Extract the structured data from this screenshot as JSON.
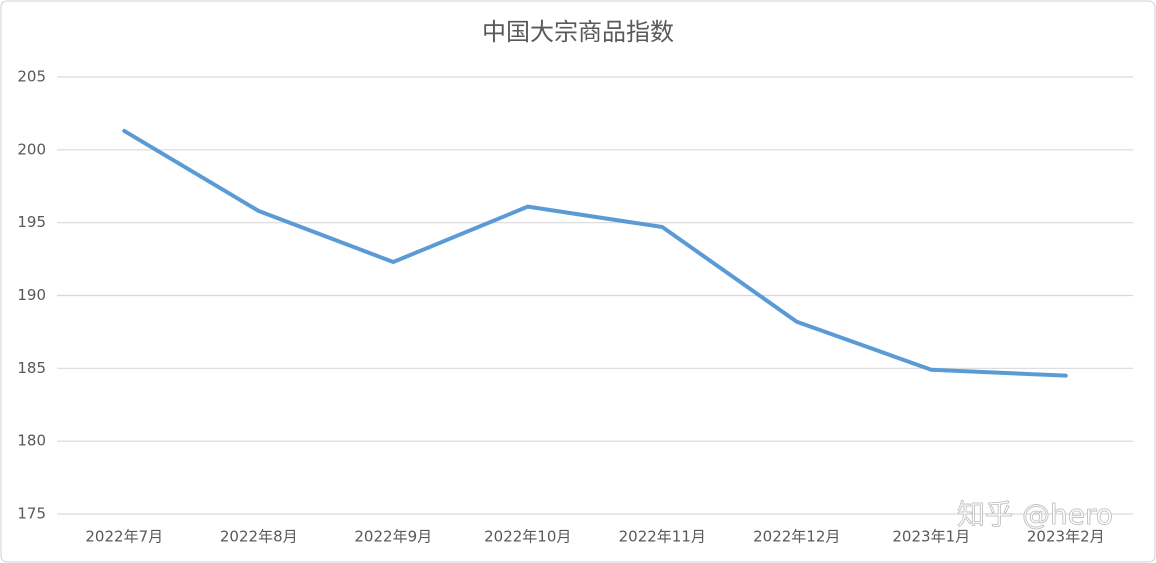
{
  "chart_data": {
    "type": "line",
    "title": "中国大宗商品指数",
    "categories": [
      "2022年7月",
      "2022年8月",
      "2022年9月",
      "2022年10月",
      "2022年11月",
      "2022年12月",
      "2023年1月",
      "2023年2月"
    ],
    "values": [
      201.3,
      195.8,
      192.3,
      196.1,
      194.7,
      188.2,
      184.9,
      184.5
    ],
    "color": "#5b9bd5",
    "ylim": [
      175,
      205
    ],
    "yticks": [
      175,
      180,
      185,
      190,
      195,
      200,
      205
    ],
    "grid": true,
    "watermark": "知乎 @hero"
  }
}
